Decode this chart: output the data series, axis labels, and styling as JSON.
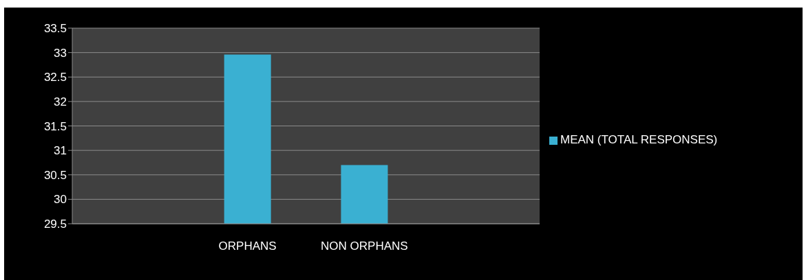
{
  "chart_data": {
    "type": "bar",
    "categories": [
      null,
      "ORPHANS",
      "NON ORPHANS",
      null
    ],
    "series": [
      {
        "name": "MEAN (TOTAL RESPONSES)",
        "color": "#3ab0d2",
        "values": [
          null,
          32.96,
          30.7,
          null
        ]
      }
    ],
    "ylim": [
      29.5,
      33.5
    ],
    "yticks": [
      29.5,
      30,
      30.5,
      31,
      31.5,
      32,
      32.5,
      33,
      33.5
    ],
    "grid": "y",
    "legend": "right"
  }
}
